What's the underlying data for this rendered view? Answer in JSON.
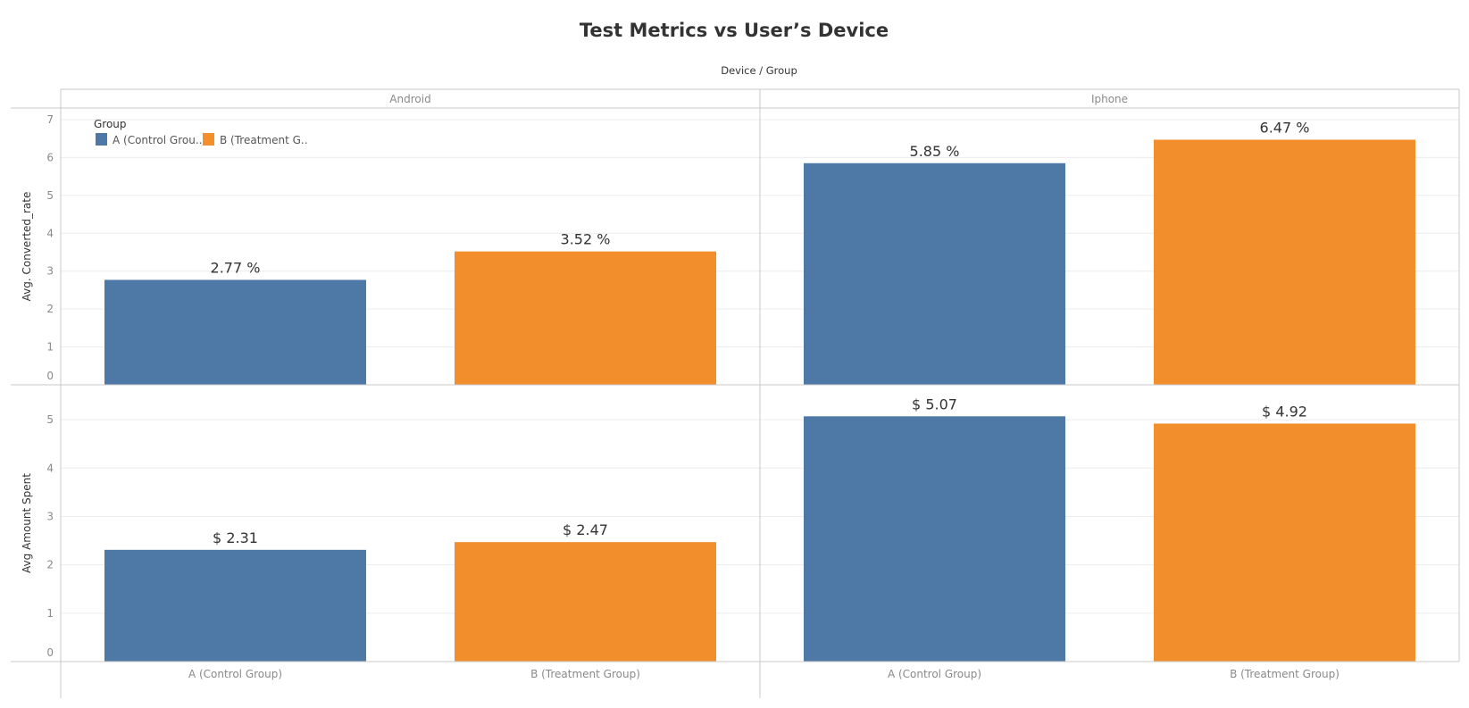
{
  "chart_data": {
    "type": "bar",
    "title": "Test Metrics vs User’s Device",
    "column_header": "Device / Group",
    "panes": [
      "Android",
      "Iphone"
    ],
    "categories": [
      "A (Control Group)",
      "B (Treatment Group)"
    ],
    "legend": {
      "title": "Group",
      "placement": "top-left",
      "entries": [
        "A (Control Grou..",
        "B (Treatment G.."
      ]
    },
    "colors": {
      "A": "#4e79a7",
      "B": "#f28e2b"
    },
    "grid": true,
    "metrics": [
      {
        "ylabel": "Avg. Converted_rate",
        "ylim": [
          0,
          7
        ],
        "ticks": [
          "0",
          "1",
          "2",
          "3",
          "4",
          "5",
          "6",
          "7"
        ],
        "values": {
          "Android": [
            2.77,
            3.52
          ],
          "Iphone": [
            5.85,
            6.47
          ]
        },
        "labels": {
          "Android": [
            "2.77 %",
            "3.52 %"
          ],
          "Iphone": [
            "5.85 %",
            "6.47 %"
          ]
        }
      },
      {
        "ylabel": "Avg Amount Spent",
        "ylim": [
          0,
          5.5
        ],
        "ticks": [
          "0",
          "1",
          "2",
          "3",
          "4",
          "5"
        ],
        "values": {
          "Android": [
            2.31,
            2.47
          ],
          "Iphone": [
            5.07,
            4.92
          ]
        },
        "labels": {
          "Android": [
            "$ 2.31",
            "$ 2.47"
          ],
          "Iphone": [
            "$ 5.07",
            "$ 4.92"
          ]
        }
      }
    ]
  }
}
